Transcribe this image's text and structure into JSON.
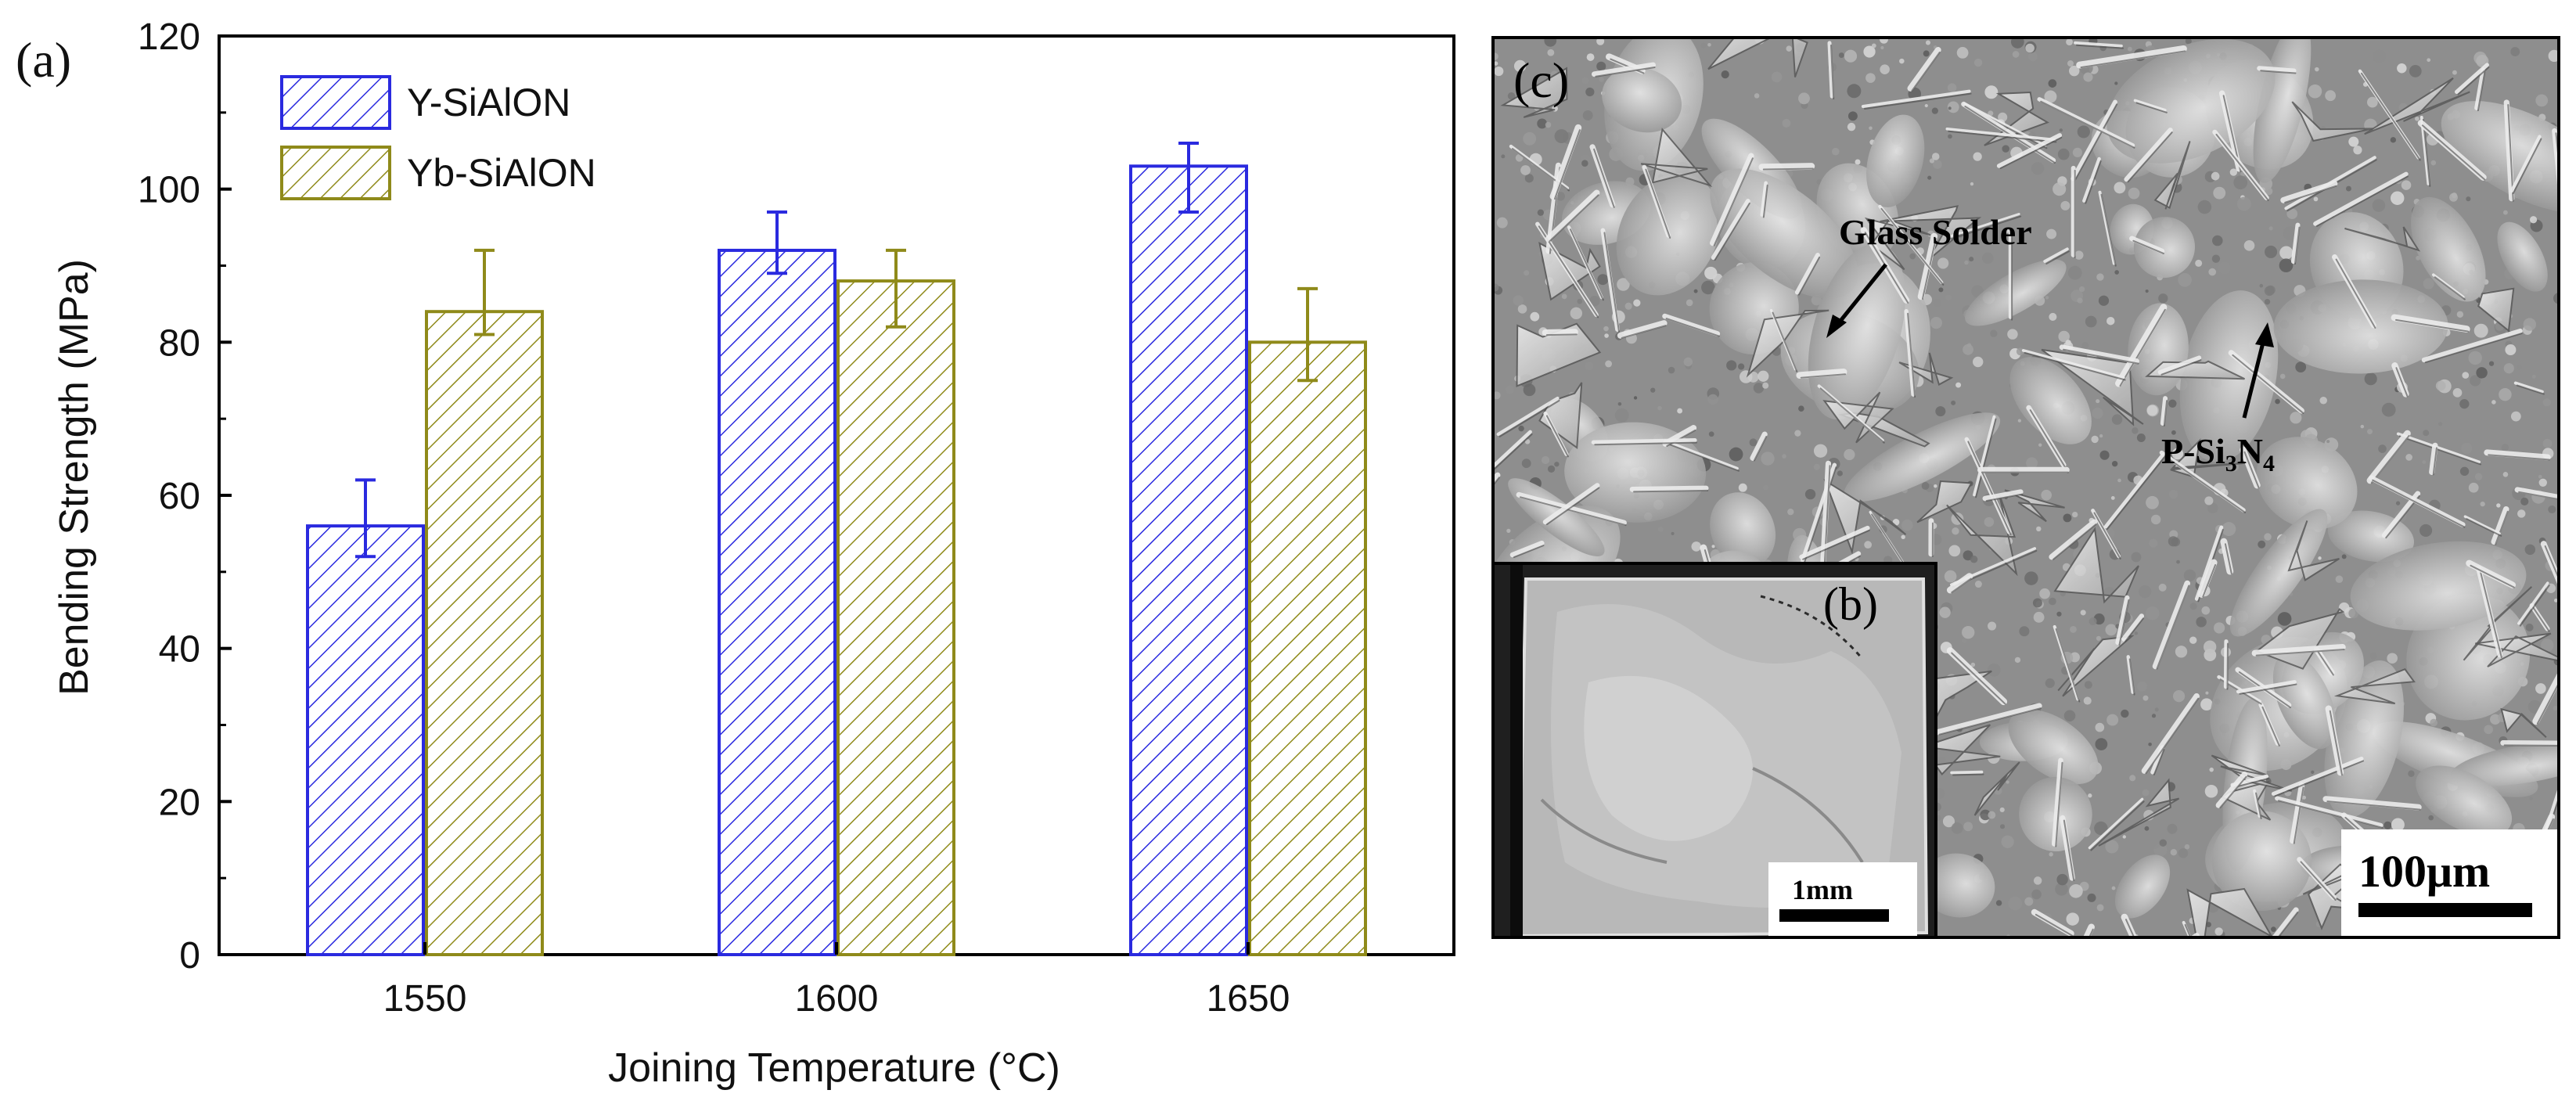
{
  "chart_data": {
    "type": "bar",
    "panel_label": "(a)",
    "categories": [
      "1550",
      "1600",
      "1650"
    ],
    "series": [
      {
        "name": "Y-SiAlON",
        "values": [
          56,
          92,
          103
        ],
        "error_low": [
          52,
          89,
          97
        ],
        "error_high": [
          62,
          97,
          106
        ],
        "color": "#2a2adf"
      },
      {
        "name": "Yb-SiAlON",
        "values": [
          84,
          88,
          80
        ],
        "error_low": [
          81,
          82,
          75
        ],
        "error_high": [
          92,
          92,
          87
        ],
        "color": "#8f8a1a"
      }
    ],
    "xlabel": "Joining Temperature (°C)",
    "ylabel": "Bending Strength (MPa)",
    "ylim": [
      0,
      120
    ],
    "yticks": [
      "0",
      "20",
      "40",
      "60",
      "80",
      "100",
      "120"
    ],
    "legend_position": "top-left",
    "grid": false
  },
  "micrograph": {
    "panel_label": "(c)",
    "annotation_glass": "Glass Solder",
    "annotation_phase_prefix": "P-Si",
    "annotation_phase_sub1": "3",
    "annotation_phase_mid": "N",
    "annotation_phase_sub2": "4",
    "scale_label": "100μm",
    "inset": {
      "panel_label": "(b)",
      "scale_label": "1mm"
    }
  }
}
